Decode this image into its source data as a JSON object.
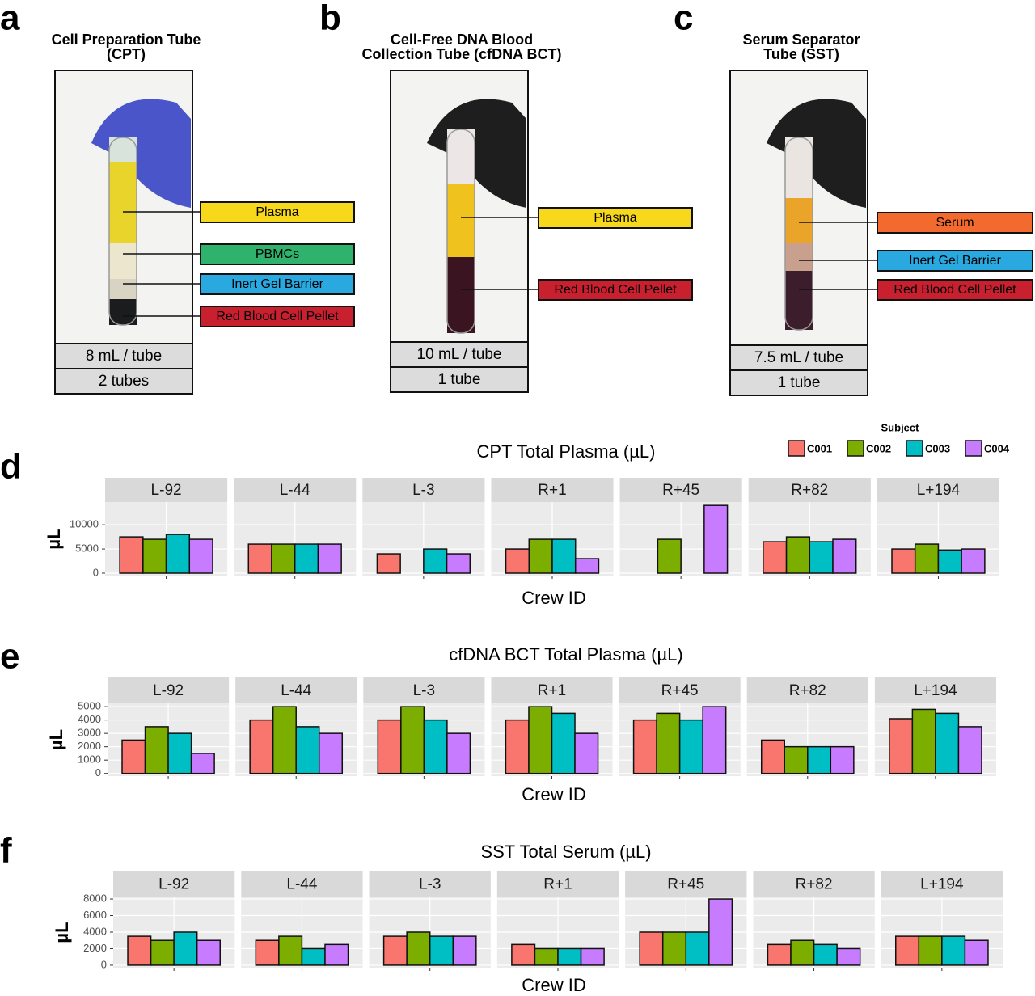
{
  "photo_panels": [
    {
      "letter": "a",
      "title": [
        "Cell Preparation Tube",
        "(CPT)"
      ],
      "labels": [
        {
          "text": "Plasma",
          "color": "#f7d81a"
        },
        {
          "text": "PBMCs",
          "color": "#2fb36c"
        },
        {
          "text": "Inert Gel Barrier",
          "color": "#2aa8e0"
        },
        {
          "text": "Red Blood Cell Pellet",
          "color": "#c8202f"
        }
      ],
      "volume": "8 mL / tube",
      "count": "2 tubes"
    },
    {
      "letter": "b",
      "title": [
        "Cell-Free DNA Blood",
        "Collection Tube (cfDNA BCT)"
      ],
      "labels": [
        {
          "text": "Plasma",
          "color": "#f7d81a"
        },
        {
          "text": "Red Blood Cell Pellet",
          "color": "#c8202f"
        }
      ],
      "volume": "10 mL / tube",
      "count": "1 tube"
    },
    {
      "letter": "c",
      "title": [
        "Serum Separator",
        "Tube (SST)"
      ],
      "labels": [
        {
          "text": "Serum",
          "color": "#f26a2e"
        },
        {
          "text": "Inert Gel Barrier",
          "color": "#2aa8e0"
        },
        {
          "text": "Red Blood Cell Pellet",
          "color": "#c8202f"
        }
      ],
      "volume": "7.5 mL / tube",
      "count": "1 tube"
    }
  ],
  "chart_data": [
    {
      "type": "bar",
      "letter": "d",
      "title": "CPT Total Plasma (µL)",
      "y_label": "µL",
      "x_label": "Crew ID",
      "legend_title": "Subject",
      "categories": [
        "L-92",
        "L-44",
        "L-3",
        "R+1",
        "R+45",
        "R+82",
        "L+194"
      ],
      "series": [
        {
          "name": "C001",
          "color": "#f8766d",
          "values": [
            7500,
            6000,
            4000,
            5000,
            0,
            6500,
            5000
          ]
        },
        {
          "name": "C002",
          "color": "#7cae00",
          "values": [
            7000,
            6000,
            0,
            7000,
            7000,
            7500,
            6000
          ]
        },
        {
          "name": "C003",
          "color": "#00bfc4",
          "values": [
            8000,
            6000,
            5000,
            7000,
            0,
            6500,
            4800
          ]
        },
        {
          "name": "C004",
          "color": "#c77cff",
          "values": [
            7000,
            6000,
            4000,
            3000,
            14000,
            7000,
            5000
          ]
        }
      ],
      "ylim": [
        -500,
        14700
      ],
      "yticks": [
        0,
        5000,
        10000
      ],
      "grid": true
    },
    {
      "type": "bar",
      "letter": "e",
      "title": "cfDNA BCT Total Plasma (µL)",
      "y_label": "µL",
      "x_label": "Crew ID",
      "categories": [
        "L-92",
        "L-44",
        "L-3",
        "R+1",
        "R+45",
        "R+82",
        "L+194"
      ],
      "series": [
        {
          "name": "C001",
          "color": "#f8766d",
          "values": [
            2500,
            4000,
            4000,
            4000,
            4000,
            2500,
            4100
          ]
        },
        {
          "name": "C002",
          "color": "#7cae00",
          "values": [
            3500,
            5000,
            5000,
            5000,
            4500,
            2000,
            4800
          ]
        },
        {
          "name": "C003",
          "color": "#00bfc4",
          "values": [
            3000,
            3500,
            4000,
            4500,
            4000,
            2000,
            4500
          ]
        },
        {
          "name": "C004",
          "color": "#c77cff",
          "values": [
            1500,
            3000,
            3000,
            3000,
            5000,
            2000,
            3500
          ]
        }
      ],
      "ylim": [
        -200,
        5250
      ],
      "yticks": [
        0,
        1000,
        2000,
        3000,
        4000,
        5000
      ],
      "grid": true
    },
    {
      "type": "bar",
      "letter": "f",
      "title": "SST Total Serum (µL)",
      "y_label": "µL",
      "x_label": "Crew ID",
      "categories": [
        "L-92",
        "L-44",
        "L-3",
        "R+1",
        "R+45",
        "R+82",
        "L+194"
      ],
      "series": [
        {
          "name": "C001",
          "color": "#f8766d",
          "values": [
            3500,
            3000,
            3500,
            2500,
            4000,
            2500,
            3500
          ]
        },
        {
          "name": "C002",
          "color": "#7cae00",
          "values": [
            3000,
            3500,
            4000,
            2000,
            4000,
            3000,
            3500
          ]
        },
        {
          "name": "C003",
          "color": "#00bfc4",
          "values": [
            4000,
            2000,
            3500,
            2000,
            4000,
            2500,
            3500
          ]
        },
        {
          "name": "C004",
          "color": "#c77cff",
          "values": [
            3000,
            2500,
            3500,
            2000,
            8000,
            2000,
            3000
          ]
        }
      ],
      "ylim": [
        -300,
        8200
      ],
      "yticks": [
        0,
        2000,
        4000,
        6000,
        8000
      ],
      "grid": true
    }
  ]
}
